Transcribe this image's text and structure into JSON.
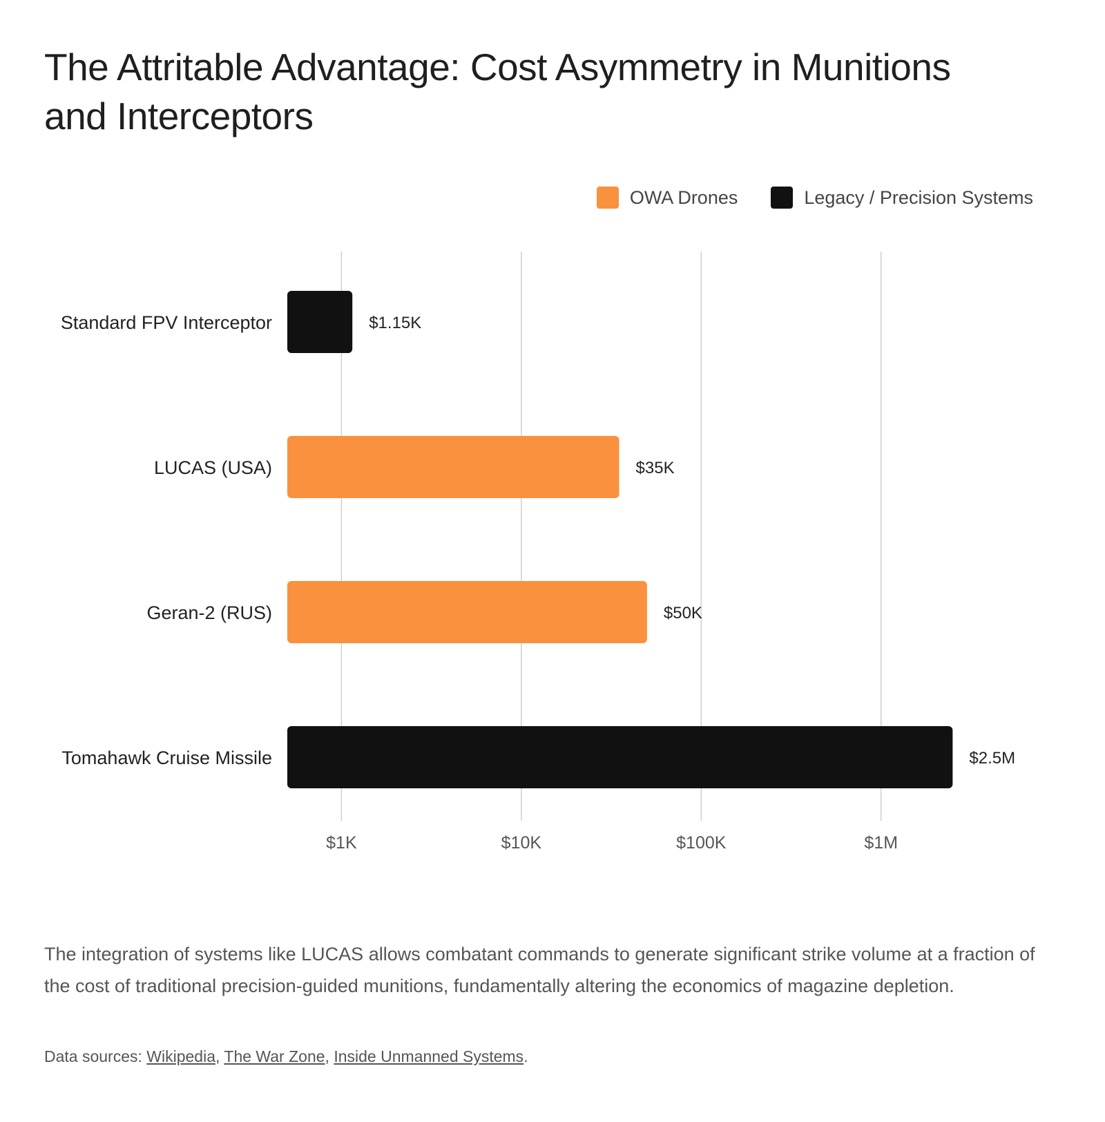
{
  "title": "The Attritable Advantage: Cost Asymmetry in Munitions and Interceptors",
  "legend": [
    {
      "label": "OWA Drones",
      "color": "#F9913F"
    },
    {
      "label": "Legacy / Precision Systems",
      "color": "#111111"
    }
  ],
  "chart_data": {
    "type": "bar",
    "orientation": "horizontal",
    "x_scale": "log",
    "xlim": [
      500,
      3000000
    ],
    "grid": true,
    "legend_position": "top-right",
    "x_ticks": [
      {
        "value": 1000,
        "label": "$1K"
      },
      {
        "value": 10000,
        "label": "$10K"
      },
      {
        "value": 100000,
        "label": "$100K"
      },
      {
        "value": 1000000,
        "label": "$1M"
      }
    ],
    "bars": [
      {
        "category": "Standard FPV Interceptor",
        "value": 1150,
        "label": "$1.15K",
        "group": "Legacy / Precision Systems",
        "color": "#111111"
      },
      {
        "category": "LUCAS (USA)",
        "value": 35000,
        "label": "$35K",
        "group": "OWA Drones",
        "color": "#F9913F"
      },
      {
        "category": "Geran-2 (RUS)",
        "value": 50000,
        "label": "$50K",
        "group": "OWA Drones",
        "color": "#F9913F"
      },
      {
        "category": "Tomahawk Cruise Missile",
        "value": 2500000,
        "label": "$2.5M",
        "group": "Legacy / Precision Systems",
        "color": "#111111"
      }
    ]
  },
  "note": "The integration of systems like LUCAS allows combatant commands to generate significant strike volume at a fraction of the cost of traditional precision-guided munitions, fundamentally altering the economics of magazine depletion.",
  "sources": {
    "prefix": "Data sources: ",
    "links": [
      "Wikipedia",
      "The War Zone",
      "Inside Unmanned Systems"
    ],
    "suffix": "."
  }
}
